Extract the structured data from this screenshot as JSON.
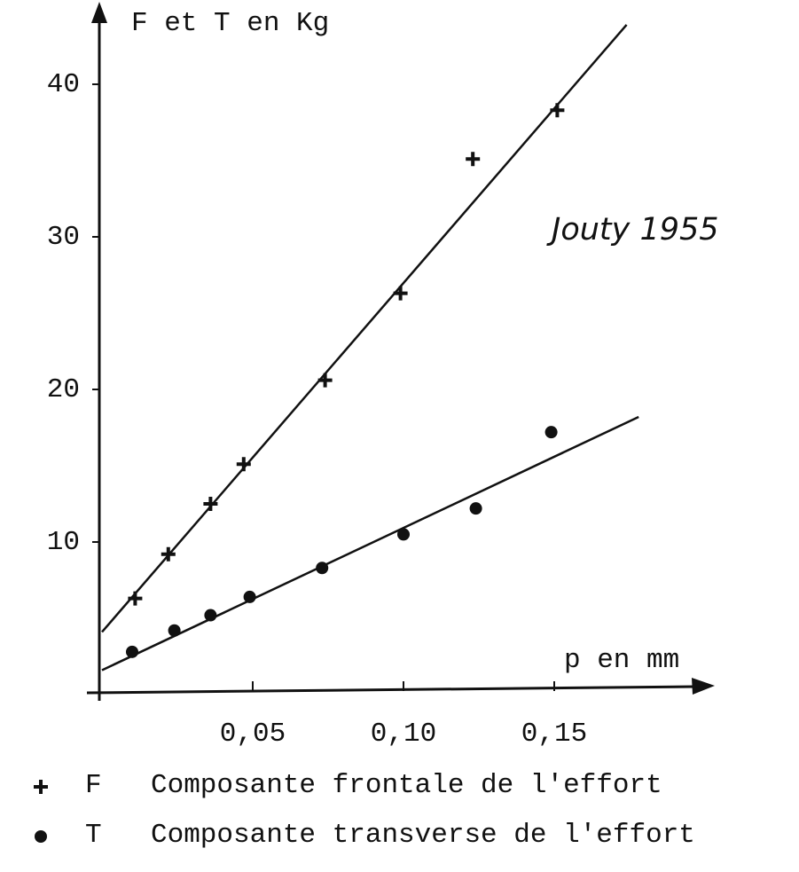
{
  "chart_data": {
    "type": "scatter",
    "y_label": "F et T en Kg",
    "x_label": "p en mm",
    "annotation": "Jouty 1955",
    "xlim": [
      0,
      0.2
    ],
    "ylim": [
      0,
      45
    ],
    "xticks": [
      {
        "value": 0.05,
        "label": "0,05"
      },
      {
        "value": 0.1,
        "label": "0,10"
      },
      {
        "value": 0.15,
        "label": "0,15"
      }
    ],
    "yticks": [
      10,
      20,
      30,
      40
    ],
    "color": "#111111",
    "series": [
      {
        "name": "F",
        "description": "Composante frontale de l'effort",
        "marker": "plus",
        "x": [
          0.011,
          0.022,
          0.036,
          0.047,
          0.074,
          0.099,
          0.123,
          0.151
        ],
        "values": [
          6.3,
          9.2,
          12.5,
          15.1,
          20.6,
          26.3,
          35.1,
          38.3
        ],
        "fit": {
          "x": [
            0,
            0.174
          ],
          "values": [
            4.1,
            43.9
          ]
        }
      },
      {
        "name": "T",
        "description": "Composante transverse de l'effort",
        "marker": "dot",
        "x": [
          0.01,
          0.024,
          0.036,
          0.049,
          0.073,
          0.1,
          0.124,
          0.149
        ],
        "values": [
          2.8,
          4.2,
          5.2,
          6.4,
          8.3,
          10.5,
          12.2,
          17.2
        ],
        "fit": {
          "x": [
            0,
            0.178
          ],
          "values": [
            1.6,
            18.2
          ]
        }
      }
    ]
  }
}
